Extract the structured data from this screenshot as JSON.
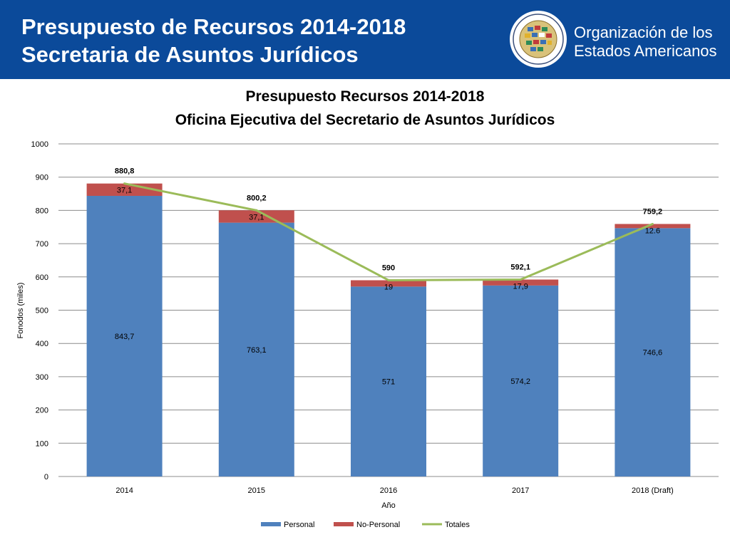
{
  "header": {
    "title_line1": "Presupuesto de Recursos 2014-2018",
    "title_line2": "Secretaria de Asuntos Jurídicos",
    "org_line1": "Organización de los",
    "org_line2": "Estados Americanos",
    "background": "#0b4a9a"
  },
  "chart_data": {
    "type": "bar",
    "stacked": true,
    "title_line1": "Presupuesto Recursos 2014-2018",
    "title_line2": "Oficina Ejecutiva del Secretario de Asuntos  Jurídicos",
    "xlabel": "Año",
    "ylabel": "Fonodos (miles)",
    "categories": [
      "2014",
      "2015",
      "2016",
      "2017",
      "2018 (Draft)"
    ],
    "ylim": [
      0,
      1000
    ],
    "yticks": [
      "0",
      "100",
      "200",
      "300",
      "400",
      "500",
      "600",
      "700",
      "800",
      "900",
      "1000"
    ],
    "grid": true,
    "legend_position": "bottom",
    "series": [
      {
        "name": "Personal",
        "kind": "bar",
        "color": "#4f81bd",
        "values": [
          843.7,
          763.1,
          571,
          574.2,
          746.6
        ],
        "labels": [
          "843,7",
          "763,1",
          "571",
          "574,2",
          "746,6"
        ]
      },
      {
        "name": "No-Personal",
        "kind": "bar",
        "color": "#c0504d",
        "values": [
          37.1,
          37.1,
          19,
          17.9,
          12.6
        ],
        "labels": [
          "37,1",
          "37,1",
          "19",
          "17,9",
          "12.6"
        ]
      },
      {
        "name": "Totales",
        "kind": "line",
        "color": "#9bbb59",
        "values": [
          880.8,
          800.2,
          590,
          592.1,
          759.2
        ],
        "labels": [
          "880,8",
          "800,2",
          "590",
          "592,1",
          "759,2"
        ]
      }
    ]
  }
}
